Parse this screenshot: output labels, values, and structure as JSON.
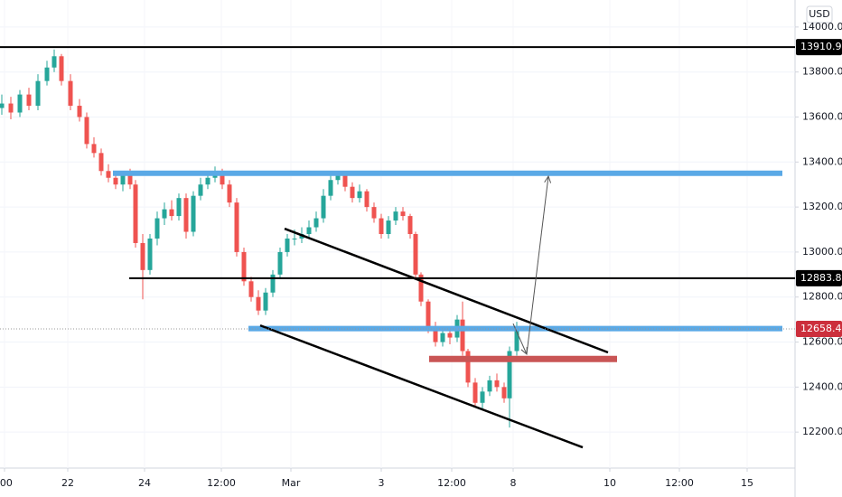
{
  "chart_data": {
    "type": "candlestick",
    "currency": "USD",
    "xlim": [
      0,
      220
    ],
    "ylim": [
      12040,
      14120
    ],
    "xticks": [
      {
        "value": 1.25,
        "label": ":00"
      },
      {
        "value": 18.75,
        "label": "22"
      },
      {
        "value": 40,
        "label": "24"
      },
      {
        "value": 61.25,
        "label": "12:00"
      },
      {
        "value": 80.5,
        "label": "Mar"
      },
      {
        "value": 105.5,
        "label": "3"
      },
      {
        "value": 125,
        "label": "12:00"
      },
      {
        "value": 142,
        "label": "8"
      },
      {
        "value": 168.75,
        "label": "10"
      },
      {
        "value": 188,
        "label": "12:00"
      },
      {
        "value": 206.75,
        "label": "15"
      }
    ],
    "yticks": [
      {
        "value": 12200,
        "label": "12200.0"
      },
      {
        "value": 12400,
        "label": "12400.0"
      },
      {
        "value": 12600,
        "label": "12600.0"
      },
      {
        "value": 12800,
        "label": "12800.0"
      },
      {
        "value": 13000,
        "label": "13000.0"
      },
      {
        "value": 13200,
        "label": "13200.0"
      },
      {
        "value": 13400,
        "label": "13400.0"
      },
      {
        "value": 13600,
        "label": "13600.0"
      },
      {
        "value": 13800,
        "label": "13800.0"
      },
      {
        "value": 14000,
        "label": "14000.0"
      }
    ],
    "grid": true,
    "up_color": "#26a69a",
    "down_color": "#ef5350",
    "series": [
      {
        "x": [
          0.5,
          3,
          5.5,
          8,
          10.5,
          13,
          15,
          17,
          19.5,
          22,
          24,
          26,
          28,
          30,
          32,
          34,
          36,
          37.5,
          39.5,
          41.5,
          43.5,
          45.5,
          47.5,
          49.5,
          51.5,
          53.5,
          55.5,
          57.5,
          59.5,
          61.5,
          63.5,
          65.5,
          67.5,
          69.5,
          71.5,
          73.5,
          75.5,
          77.5,
          79.5,
          81.5,
          83.5,
          85.5,
          87.5,
          89.5,
          91.5,
          93.5,
          95.5,
          97.5,
          99.5,
          101.5,
          103.5,
          105.5,
          107.5,
          109.5,
          111.5,
          113.5,
          115,
          116.5,
          118.5,
          120.5,
          122.5,
          124.5,
          126.5,
          128,
          129.5,
          131.5,
          133.5,
          135.5,
          137.5,
          139.5,
          141,
          143
        ],
        "open": [
          13640,
          13660,
          13620,
          13700,
          13650,
          13760,
          13820,
          13870,
          13760,
          13650,
          13600,
          13480,
          13440,
          13360,
          13330,
          13300,
          13340,
          13300,
          13040,
          12920,
          13060,
          13150,
          13190,
          13160,
          13240,
          13090,
          13250,
          13300,
          13330,
          13350,
          13300,
          13220,
          13000,
          12870,
          12800,
          12740,
          12820,
          12900,
          13000,
          13060,
          13060,
          13080,
          13110,
          13150,
          13250,
          13320,
          13340,
          13290,
          13240,
          13270,
          13200,
          13150,
          13080,
          13140,
          13180,
          13160,
          13080,
          12900,
          12780,
          12660,
          12600,
          12640,
          12620,
          12700,
          12560,
          12420,
          12330,
          12380,
          12430,
          12400,
          12350,
          12560
        ],
        "high": [
          13700,
          13690,
          13720,
          13730,
          13790,
          13850,
          13900,
          13880,
          13790,
          13680,
          13620,
          13510,
          13460,
          13390,
          13360,
          13360,
          13370,
          13320,
          13080,
          13080,
          13180,
          13220,
          13230,
          13260,
          13260,
          13270,
          13330,
          13350,
          13380,
          13370,
          13320,
          13240,
          13020,
          12890,
          12830,
          12840,
          12920,
          13020,
          13080,
          13100,
          13110,
          13140,
          13180,
          13280,
          13340,
          13360,
          13350,
          13310,
          13300,
          13280,
          13220,
          13170,
          13160,
          13200,
          13200,
          13170,
          13090,
          12910,
          12790,
          12690,
          12670,
          12670,
          12720,
          12780,
          12570,
          12440,
          12400,
          12450,
          12460,
          12420,
          12580,
          12690
        ],
        "low": [
          13610,
          13590,
          13600,
          13630,
          13630,
          13740,
          13800,
          13740,
          13630,
          13580,
          13460,
          13420,
          13340,
          13310,
          13280,
          13270,
          13280,
          13020,
          12790,
          12900,
          13030,
          13120,
          13140,
          13140,
          13060,
          13070,
          13230,
          13280,
          13310,
          13280,
          13200,
          12980,
          12850,
          12780,
          12720,
          12720,
          12800,
          12880,
          12980,
          13030,
          13040,
          13060,
          13090,
          13130,
          13230,
          13300,
          13270,
          13220,
          13220,
          13180,
          13130,
          13060,
          13060,
          13120,
          13140,
          13060,
          12880,
          12760,
          12640,
          12580,
          12580,
          12590,
          12600,
          12540,
          12400,
          12310,
          12300,
          12360,
          12380,
          12330,
          12220,
          12540
        ],
        "close": [
          13660,
          13620,
          13700,
          13650,
          13760,
          13820,
          13870,
          13760,
          13650,
          13600,
          13480,
          13440,
          13360,
          13330,
          13300,
          13340,
          13300,
          13040,
          12920,
          13060,
          13150,
          13190,
          13160,
          13240,
          13090,
          13250,
          13300,
          13330,
          13350,
          13300,
          13220,
          13000,
          12870,
          12800,
          12740,
          12820,
          12900,
          13000,
          13060,
          13060,
          13080,
          13110,
          13150,
          13250,
          13320,
          13340,
          13290,
          13240,
          13270,
          13200,
          13150,
          13080,
          13140,
          13180,
          13160,
          13080,
          12900,
          12780,
          12660,
          12600,
          12640,
          12620,
          12700,
          12560,
          12420,
          12330,
          12380,
          12430,
          12400,
          12350,
          12560,
          12660
        ]
      }
    ],
    "lines": [
      {
        "color": "#5aa9e6",
        "width": 6,
        "x1": 31.25,
        "y1": 13350,
        "x2": 216.5,
        "y2": 13350
      },
      {
        "color": "#5aa9e6",
        "width": 6,
        "x1": 68.75,
        "y1": 12660,
        "x2": 216.5,
        "y2": 12660
      },
      {
        "color": "#c95555",
        "width": 7,
        "x1": 118.75,
        "y1": 12525,
        "x2": 170.75,
        "y2": 12525
      },
      {
        "color": "#000000",
        "width": 2,
        "x1": 35.75,
        "y1": 12883.8,
        "x2": 220,
        "y2": 12883.8
      },
      {
        "color": "#000000",
        "width": 2,
        "x1": 0,
        "y1": 13910.9,
        "x2": 220,
        "y2": 13910.9
      },
      {
        "color": "#000000",
        "width": 2.5,
        "x1": 78.75,
        "y1": 13104,
        "x2": 168.25,
        "y2": 12554
      },
      {
        "color": "#000000",
        "width": 2.5,
        "x1": 72,
        "y1": 12674,
        "x2": 161.25,
        "y2": 12132
      },
      {
        "color": "#555555",
        "width": 1,
        "x1": 142,
        "y1": 12682,
        "x2": 145.75,
        "y2": 12546
      },
      {
        "color": "#555555",
        "width": 1,
        "x1": 145.75,
        "y1": 12546,
        "x2": 151.75,
        "y2": 13337
      }
    ],
    "price_labels": [
      {
        "value": 13910.9,
        "color": "#000000"
      },
      {
        "value": 12883.8,
        "color": "#000000"
      },
      {
        "value": 12658.4,
        "color": "#cc2f3c"
      }
    ]
  }
}
